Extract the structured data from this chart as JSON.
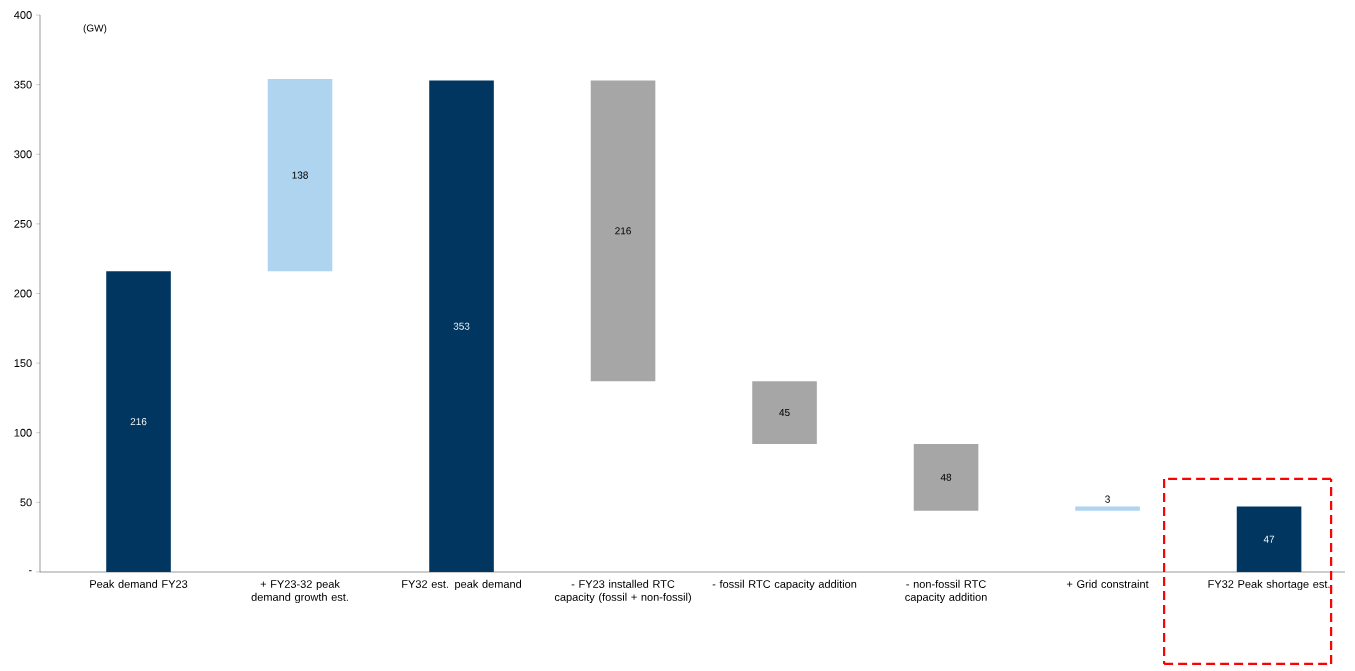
{
  "chart_data": {
    "type": "bar",
    "ylabel": "(GW)",
    "categories": [
      "Peak demand FY23",
      "+ FY23-32 peak demand growth est.",
      "FY32 est. peak demand",
      "- FY23 installed RTC capacity (fossil + non-fossil)",
      "- fossil RTC capacity addition",
      "- non-fossil RTC capacity addition",
      "+ Grid constraint",
      "FY32 Peak shortage est."
    ],
    "values": [
      216,
      138,
      353,
      216,
      45,
      48,
      3,
      47
    ],
    "base": [
      0,
      216,
      0,
      137,
      92,
      44,
      44,
      0
    ],
    "colors": [
      "#003660",
      "#aed4ef",
      "#003660",
      "#a6a6a6",
      "#a6a6a6",
      "#a6a6a6",
      "#aed4ef",
      "#003660"
    ],
    "ylim": [
      0,
      400
    ],
    "yticks": [
      {
        "value": 0,
        "label": "-"
      },
      50,
      100,
      150,
      200,
      250,
      300,
      350,
      400
    ],
    "data_labels": true
  }
}
